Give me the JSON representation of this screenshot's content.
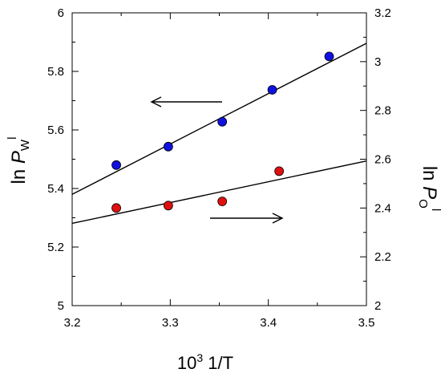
{
  "chart_data": {
    "type": "scatter",
    "xlabel": {
      "base": "10",
      "sup": "3",
      "rest": " 1/T"
    },
    "ylabel_left": {
      "pre": "ln ",
      "italic": "P",
      "sub": "W",
      "sup": "l"
    },
    "ylabel_right": {
      "pre": "ln ",
      "italic": "P",
      "sub": "O",
      "sup": "l"
    },
    "xlim": [
      3.2,
      3.5
    ],
    "ylim_left": [
      5.0,
      6.0
    ],
    "ylim_right": [
      2.0,
      3.2
    ],
    "x_ticks": [
      "3.2",
      "3.3",
      "3.4",
      "3.5"
    ],
    "y_left_ticks": [
      "5",
      "5.2",
      "5.4",
      "5.6",
      "5.8",
      "6"
    ],
    "y_right_ticks": [
      "2",
      "2.2",
      "2.4",
      "2.6",
      "2.8",
      "3",
      "3.2"
    ],
    "series": [
      {
        "axis": "left",
        "color": "#1010e0",
        "x": [
          3.245,
          3.298,
          3.353,
          3.404,
          3.462
        ],
        "y": [
          5.48,
          5.543,
          5.628,
          5.737,
          5.851
        ],
        "fit": {
          "x": [
            3.2,
            3.5
          ],
          "y": [
            5.38,
            5.896
          ]
        }
      },
      {
        "axis": "right",
        "color": "#e01010",
        "x": [
          3.245,
          3.298,
          3.353,
          3.411
        ],
        "y": [
          2.4,
          2.41,
          2.427,
          2.551
        ],
        "fit": {
          "x": [
            3.2,
            3.5
          ],
          "y": [
            2.337,
            2.593
          ]
        }
      }
    ],
    "annotations": [
      {
        "type": "arrow",
        "direction": "left",
        "points_to_axis": "left"
      },
      {
        "type": "arrow",
        "direction": "right",
        "points_to_axis": "right"
      }
    ],
    "grid": false,
    "legend": "none"
  }
}
